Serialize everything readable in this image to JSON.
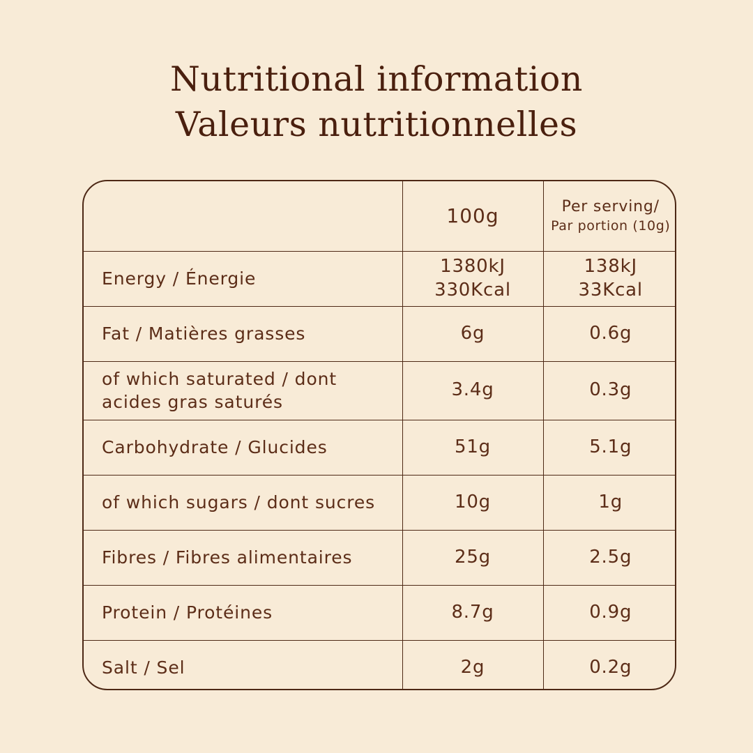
{
  "page": {
    "background_color": "#f8ebd7"
  },
  "title": {
    "line1": "Nutritional information",
    "line2": "Valeurs nutritionnelles",
    "color": "#4a1f0e"
  },
  "table": {
    "border_color": "#4d2815",
    "text_color": "#5c2d18",
    "header": {
      "label_col": "",
      "col_100g": "100g",
      "col_serving_line1": "Per serving/",
      "col_serving_line2": "Par portion (10g)"
    },
    "rows": [
      {
        "label": "Energy / Énergie",
        "per_100g": "1380kJ\n330Kcal",
        "per_serving": "138kJ\n33Kcal"
      },
      {
        "label": "Fat / Matières grasses",
        "per_100g": "6g",
        "per_serving": "0.6g"
      },
      {
        "label": "of which saturated / dont acides gras saturés",
        "per_100g": "3.4g",
        "per_serving": "0.3g"
      },
      {
        "label": "Carbohydrate / Glucides",
        "per_100g": "51g",
        "per_serving": "5.1g"
      },
      {
        "label": "of which sugars / dont sucres",
        "per_100g": "10g",
        "per_serving": "1g"
      },
      {
        "label": "Fibres / Fibres alimentaires",
        "per_100g": "25g",
        "per_serving": "2.5g"
      },
      {
        "label": "Protein / Protéines",
        "per_100g": "8.7g",
        "per_serving": "0.9g"
      },
      {
        "label": "Salt / Sel",
        "per_100g": "2g",
        "per_serving": "0.2g"
      }
    ]
  }
}
